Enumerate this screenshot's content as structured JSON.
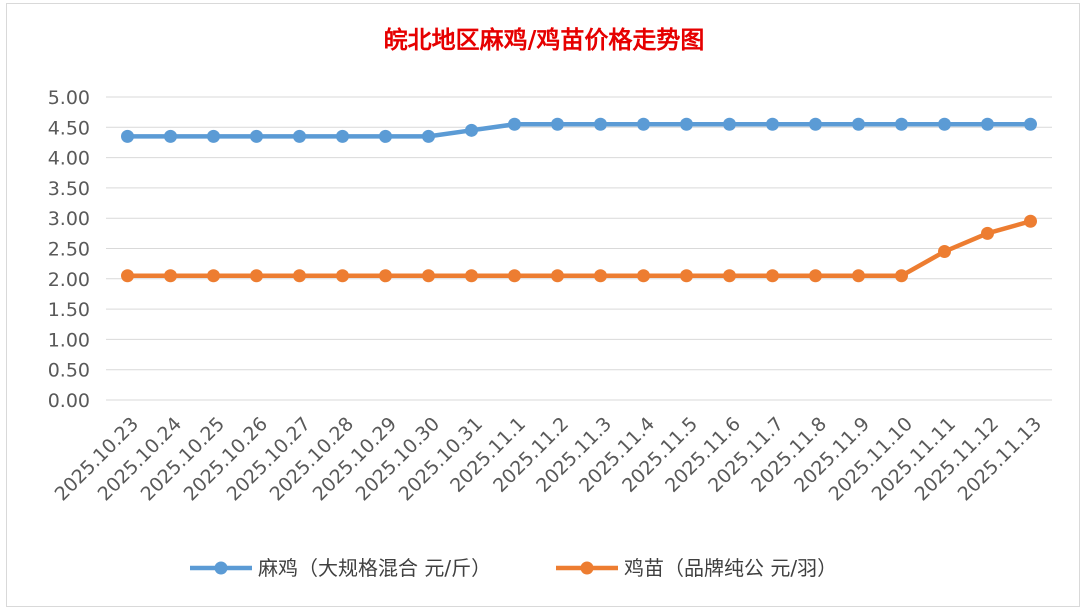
{
  "chart_data": {
    "type": "line",
    "title": "皖北地区麻鸡/鸡苗价格走势图",
    "categories": [
      "2025.10.23",
      "2025.10.24",
      "2025.10.25",
      "2025.10.26",
      "2025.10.27",
      "2025.10.28",
      "2025.10.29",
      "2025.10.30",
      "2025.10.31",
      "2025.11.1",
      "2025.11.2",
      "2025.11.3",
      "2025.11.4",
      "2025.11.5",
      "2025.11.6",
      "2025.11.7",
      "2025.11.8",
      "2025.11.9",
      "2025.11.10",
      "2025.11.11",
      "2025.11.12",
      "2025.11.13"
    ],
    "series": [
      {
        "name": "麻鸡（大规格混合 元/斤）",
        "color": "#5b9bd5",
        "values": [
          4.35,
          4.35,
          4.35,
          4.35,
          4.35,
          4.35,
          4.35,
          4.35,
          4.45,
          4.55,
          4.55,
          4.55,
          4.55,
          4.55,
          4.55,
          4.55,
          4.55,
          4.55,
          4.55,
          4.55,
          4.55,
          4.55
        ]
      },
      {
        "name": "鸡苗（品牌纯公 元/羽）",
        "color": "#ed7d31",
        "values": [
          2.05,
          2.05,
          2.05,
          2.05,
          2.05,
          2.05,
          2.05,
          2.05,
          2.05,
          2.05,
          2.05,
          2.05,
          2.05,
          2.05,
          2.05,
          2.05,
          2.05,
          2.05,
          2.05,
          2.45,
          2.75,
          2.95
        ]
      }
    ],
    "ylim": [
      0,
      5
    ],
    "yticks": [
      "0.00",
      "0.50",
      "1.00",
      "1.50",
      "2.00",
      "2.50",
      "3.00",
      "3.50",
      "4.00",
      "4.50",
      "5.00"
    ],
    "grid": true,
    "legend": "bottom"
  }
}
